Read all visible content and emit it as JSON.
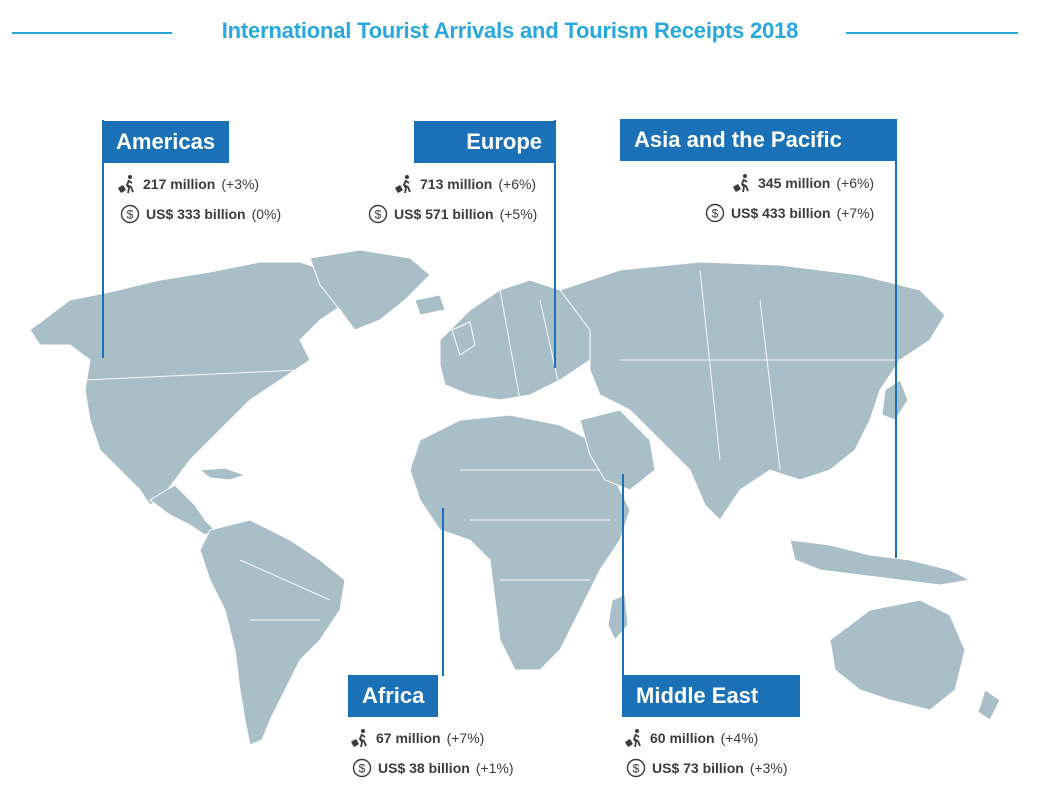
{
  "title": "International Tourist Arrivals and Tourism Receipts 2018",
  "colors": {
    "accent": "#29a8e0",
    "label_bg": "#1a71b8",
    "land": "#a9bfc8",
    "borders": "#ffffff"
  },
  "regions": [
    {
      "name": "Americas",
      "arrivals": "217 million",
      "arrivals_change": "(+3%)",
      "receipts": "US$ 333 billion",
      "receipts_change": "(0%)"
    },
    {
      "name": "Europe",
      "arrivals": "713 million",
      "arrivals_change": "(+6%)",
      "receipts": "US$ 571 billion",
      "receipts_change": "(+5%)"
    },
    {
      "name": "Asia and the Pacific",
      "arrivals": "345 million",
      "arrivals_change": "(+6%)",
      "receipts": "US$ 433 billion",
      "receipts_change": "(+7%)"
    },
    {
      "name": "Africa",
      "arrivals": "67 million",
      "arrivals_change": "(+7%)",
      "receipts": "US$ 38 billion",
      "receipts_change": "(+1%)"
    },
    {
      "name": "Middle East",
      "arrivals": "60 million",
      "arrivals_change": "(+4%)",
      "receipts": "US$ 73 billion",
      "receipts_change": "(+3%)"
    }
  ],
  "icons": {
    "arrivals": "traveler-luggage-icon",
    "receipts": "dollar-coin-icon"
  }
}
